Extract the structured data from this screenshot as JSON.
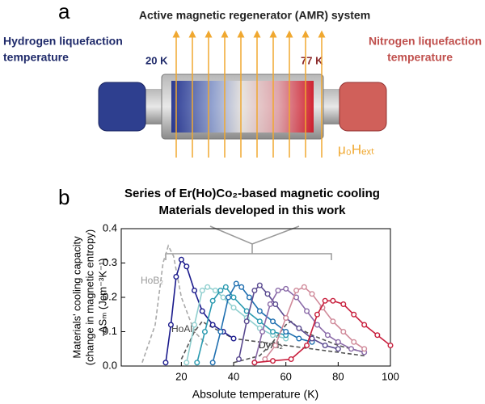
{
  "diagram": {
    "panel_label": "a",
    "title": "Active magnetic regenerator (AMR) system",
    "left_label": [
      "Hydrogen liquefaction",
      "temperature"
    ],
    "left_temp": "20 K",
    "right_label": [
      "Nitrogen liquefaction",
      "temperature"
    ],
    "right_temp": "77 K",
    "field_label": "μ₀Hₑₓₜ"
  },
  "chart_data": {
    "type": "line",
    "panel_label": "b",
    "title": [
      "Series of Er(Ho)Co₂-based magnetic cooling",
      "Materials developed in this work"
    ],
    "x_label": "Absolute temperature (K)",
    "y_label": [
      "Materials' cooling capacity",
      "(change in magnetic entropy)",
      "-ΔSₘ (Jcm⁻³K⁻¹)"
    ],
    "xlim": [
      -3,
      100
    ],
    "xticks": [
      20,
      40,
      60,
      80,
      100
    ],
    "ylim": [
      0,
      0.4
    ],
    "yticks": [
      {
        "value": 0,
        "label": "0.0"
      },
      0.1,
      0.2,
      0.3,
      0.4
    ],
    "annotations": [
      "HoB₂",
      "HoAl₂",
      "DyAl₂"
    ],
    "series": [
      {
        "color": "#aaaaaa",
        "dash": true,
        "markers": false,
        "x": [
          5,
          10,
          13,
          15,
          17,
          20,
          25,
          30
        ],
        "values": [
          0.01,
          0.12,
          0.3,
          0.35,
          0.32,
          0.2,
          0.1,
          0.06
        ]
      },
      {
        "color": "#555555",
        "dash": true,
        "markers": false,
        "x": [
          20,
          25,
          28,
          30,
          35,
          40,
          50,
          60,
          70,
          80,
          90
        ],
        "values": [
          0.02,
          0.1,
          0.13,
          0.12,
          0.1,
          0.08,
          0.07,
          0.06,
          0.05,
          0.04,
          0.03
        ]
      },
      {
        "color": "#555555",
        "dash": true,
        "markers": false,
        "x": [
          40,
          50,
          55,
          60,
          62,
          65,
          70,
          80,
          90
        ],
        "values": [
          0.01,
          0.03,
          0.07,
          0.12,
          0.13,
          0.11,
          0.09,
          0.06,
          0.04
        ]
      },
      {
        "color": "#1a1a8c",
        "dash": false,
        "markers": true,
        "x": [
          14,
          16,
          18,
          20,
          22,
          25,
          28,
          32,
          36,
          40
        ],
        "values": [
          0.01,
          0.12,
          0.26,
          0.31,
          0.29,
          0.22,
          0.16,
          0.12,
          0.1,
          0.08
        ]
      },
      {
        "color": "#8fcfcf",
        "dash": false,
        "markers": true,
        "x": [
          22,
          25,
          28,
          30,
          33,
          36,
          40,
          45,
          50,
          55,
          60
        ],
        "values": [
          0.01,
          0.12,
          0.22,
          0.23,
          0.22,
          0.2,
          0.17,
          0.14,
          0.11,
          0.09,
          0.08
        ]
      },
      {
        "color": "#2a9ab0",
        "dash": false,
        "markers": true,
        "x": [
          26,
          29,
          32,
          35,
          37,
          40,
          45,
          50,
          55,
          60
        ],
        "values": [
          0.01,
          0.1,
          0.19,
          0.22,
          0.23,
          0.2,
          0.16,
          0.13,
          0.1,
          0.09
        ]
      },
      {
        "color": "#1f6fb0",
        "dash": false,
        "markers": true,
        "x": [
          32,
          35,
          38,
          41,
          43,
          46,
          50,
          55,
          60,
          65,
          70
        ],
        "values": [
          0.01,
          0.1,
          0.2,
          0.24,
          0.23,
          0.2,
          0.16,
          0.13,
          0.1,
          0.08,
          0.07
        ]
      },
      {
        "color": "#5a4a90",
        "dash": false,
        "markers": true,
        "x": [
          42,
          45,
          48,
          50,
          53,
          56,
          60,
          65,
          70,
          75,
          80
        ],
        "values": [
          0.02,
          0.13,
          0.22,
          0.235,
          0.21,
          0.18,
          0.14,
          0.11,
          0.08,
          0.06,
          0.05
        ]
      },
      {
        "color": "#8a6aa8",
        "dash": false,
        "markers": true,
        "x": [
          48,
          51,
          54,
          57,
          60,
          64,
          68,
          72,
          76,
          80,
          85,
          90
        ],
        "values": [
          0.01,
          0.1,
          0.18,
          0.22,
          0.225,
          0.2,
          0.16,
          0.12,
          0.09,
          0.07,
          0.05,
          0.04
        ]
      },
      {
        "color": "#d08a9a",
        "dash": false,
        "markers": true,
        "x": [
          52,
          56,
          60,
          64,
          67,
          70,
          74,
          78,
          82,
          86,
          90
        ],
        "values": [
          0.02,
          0.06,
          0.14,
          0.22,
          0.23,
          0.21,
          0.17,
          0.13,
          0.1,
          0.07,
          0.05
        ]
      },
      {
        "color": "#c81e3c",
        "dash": false,
        "markers": true,
        "x": [
          48,
          55,
          62,
          68,
          72,
          75,
          78,
          82,
          86,
          90,
          95,
          100
        ],
        "values": [
          0.01,
          0.015,
          0.02,
          0.06,
          0.15,
          0.19,
          0.19,
          0.18,
          0.15,
          0.12,
          0.09,
          0.06
        ]
      }
    ]
  }
}
